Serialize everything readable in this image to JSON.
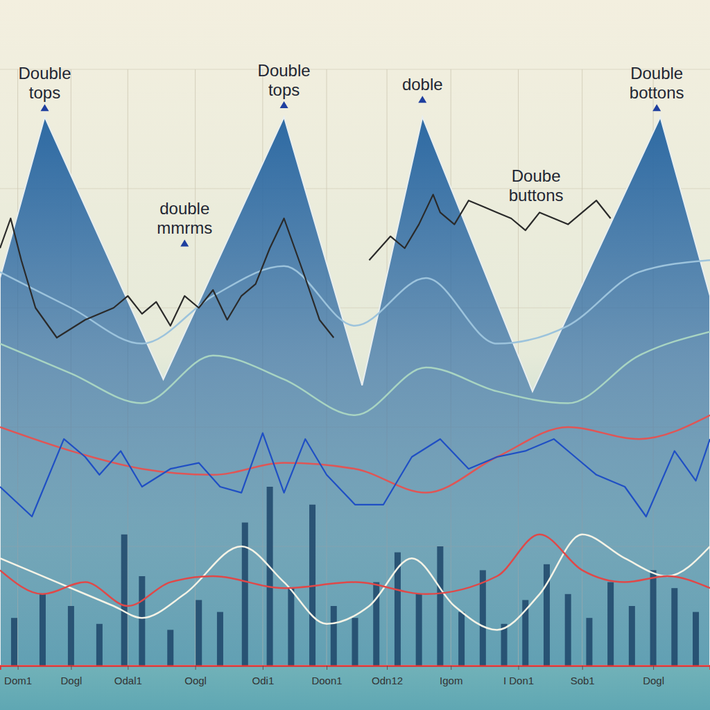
{
  "chart_data": {
    "type": "line",
    "xlim": [
      0,
      100
    ],
    "ylim": [
      0,
      100
    ],
    "xticks": [
      {
        "value": 2.5,
        "label": "Dom1"
      },
      {
        "value": 10,
        "label": "Dogl"
      },
      {
        "value": 18,
        "label": "Odal1"
      },
      {
        "value": 27.5,
        "label": "Oogl"
      },
      {
        "value": 37,
        "label": "Odi1"
      },
      {
        "value": 46,
        "label": "Doon1"
      },
      {
        "value": 54.5,
        "label": "Odn12"
      },
      {
        "value": 63.5,
        "label": "Igom"
      },
      {
        "value": 73,
        "label": "I Don1"
      },
      {
        "value": 82,
        "label": "Sob1"
      },
      {
        "value": 92,
        "label": "Dogl"
      }
    ],
    "yticks": [
      0,
      20,
      40,
      60,
      80,
      100
    ],
    "grid": true,
    "tick_labels": "x",
    "series": [
      {
        "type": "area",
        "color": "#2e6aa3",
        "x": [
          0,
          6.3,
          23,
          40,
          51,
          59.5,
          75,
          93,
          100
        ],
        "values": [
          65,
          92,
          48,
          92,
          47,
          92,
          46,
          92,
          62
        ]
      },
      {
        "type": "line",
        "color": "#9cc3dc",
        "line_style": "smooth",
        "x": [
          0,
          10,
          20,
          30,
          40,
          50,
          60,
          70,
          80,
          90,
          100
        ],
        "values": [
          66,
          60,
          54,
          62,
          67,
          57,
          65,
          54,
          57,
          66,
          68
        ]
      },
      {
        "type": "line",
        "color": "#a8d4c2",
        "line_style": "smooth",
        "x": [
          0,
          10,
          20,
          30,
          40,
          50,
          60,
          70,
          80,
          90,
          100
        ],
        "values": [
          54,
          49,
          44,
          52,
          48,
          42,
          50,
          46,
          44,
          52,
          56
        ]
      },
      {
        "type": "bar",
        "color": "#1d4568",
        "x": [
          2,
          6,
          10,
          14,
          17.5,
          20,
          24,
          28,
          31,
          34.5,
          38,
          41,
          44,
          47,
          50,
          53,
          56,
          59,
          62,
          65,
          68,
          71,
          74,
          77,
          80,
          83,
          86,
          89,
          92,
          95,
          98
        ],
        "values": [
          8,
          12,
          10,
          7,
          22,
          15,
          6,
          11,
          9,
          24,
          30,
          13,
          27,
          10,
          8,
          14,
          19,
          12,
          20,
          9,
          16,
          7,
          11,
          17,
          12,
          8,
          14,
          10,
          16,
          13,
          9
        ]
      },
      {
        "type": "line",
        "color": "#2a2a2a",
        "x": [
          0,
          1.5,
          3,
          5,
          8,
          12,
          16,
          18,
          20,
          22,
          24,
          26,
          28,
          30,
          32,
          34,
          36,
          38,
          40,
          43,
          45,
          47
        ],
        "values": [
          70,
          75,
          68,
          60,
          55,
          58,
          60,
          62,
          59,
          61,
          57,
          62,
          60,
          63,
          58,
          62,
          64,
          70,
          75,
          65,
          58,
          55
        ]
      },
      {
        "type": "line",
        "color": "#2a2a2a",
        "x": [
          52,
          55,
          57,
          59,
          61,
          62,
          64,
          66,
          68,
          70,
          72,
          74,
          76,
          78,
          80,
          82,
          84,
          86
        ],
        "values": [
          68,
          72,
          70,
          74,
          79,
          76,
          74,
          78,
          77,
          76,
          75,
          73,
          76,
          75,
          74,
          76,
          78,
          75
        ]
      },
      {
        "type": "line",
        "color": "#e05555",
        "line_style": "smooth",
        "x": [
          0,
          10,
          20,
          30,
          40,
          50,
          60,
          70,
          80,
          90,
          100
        ],
        "values": [
          40,
          36,
          33,
          32,
          34,
          33,
          29,
          35,
          40,
          38,
          42
        ]
      },
      {
        "type": "line",
        "color": "#1f4fc4",
        "x": [
          0,
          4.5,
          9,
          12,
          14,
          17,
          20,
          24,
          28,
          31,
          34,
          37,
          40,
          43,
          46,
          50,
          54,
          58,
          62,
          66,
          70,
          74,
          78,
          81,
          84,
          88,
          91,
          95,
          98,
          100
        ],
        "values": [
          30,
          25,
          38,
          35,
          32,
          36,
          30,
          33,
          34,
          30,
          29,
          39,
          29,
          38,
          32,
          27,
          27,
          35,
          38,
          33,
          35,
          36,
          38,
          35,
          32,
          30,
          25,
          36,
          31,
          38
        ]
      },
      {
        "type": "line",
        "color": "#f6f3e6",
        "line_style": "smooth",
        "x": [
          0,
          8,
          16,
          20,
          26,
          34,
          40,
          46,
          52,
          58,
          64,
          70,
          76,
          82,
          88,
          94,
          100
        ],
        "values": [
          18,
          14,
          10,
          8,
          12,
          20,
          14,
          7,
          10,
          18,
          10,
          6,
          12,
          22,
          18,
          15,
          20
        ]
      },
      {
        "type": "line",
        "color": "#e04848",
        "line_style": "smooth",
        "x": [
          0,
          6,
          12,
          18,
          24,
          30,
          40,
          50,
          60,
          70,
          76,
          82,
          88,
          94,
          100
        ],
        "values": [
          16,
          12,
          14,
          10,
          14,
          15,
          13,
          14,
          12,
          15,
          22,
          16,
          14,
          15,
          13
        ]
      }
    ],
    "annotations": [
      {
        "text": "Double\ntops",
        "x": 6.3,
        "y": 93,
        "marker": "triangle-up"
      },
      {
        "text": "Double\ntops",
        "x": 40,
        "y": 93.5,
        "marker": "triangle-up"
      },
      {
        "text": "doble",
        "x": 59.5,
        "y": 94.4,
        "marker": "triangle-up"
      },
      {
        "text": "Double\nbottons",
        "x": 92.5,
        "y": 93,
        "marker": "triangle-up"
      },
      {
        "text": "double\nmmrms",
        "x": 26,
        "y": 70.3,
        "marker": "triangle-up"
      },
      {
        "text": "Doube\nbuttons",
        "x": 75.5,
        "y": 81.2
      }
    ]
  }
}
